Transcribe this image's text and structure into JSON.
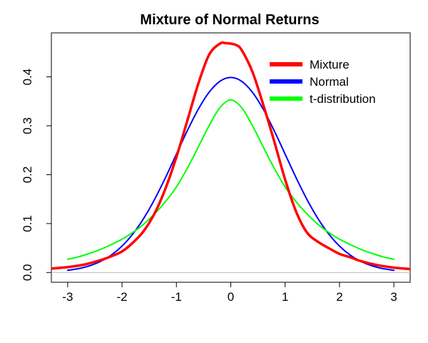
{
  "chart_data": {
    "type": "line",
    "title": "Mixture of Normal Returns",
    "xlabel": "",
    "ylabel": "",
    "xlim": [
      -3.3,
      3.3
    ],
    "ylim": [
      -0.02,
      0.49
    ],
    "xticks": [
      -3,
      -2,
      -1,
      0,
      1,
      2,
      3
    ],
    "yticks": [
      0.0,
      0.1,
      0.2,
      0.3,
      0.4
    ],
    "xtick_labels": [
      "-3",
      "-2",
      "-1",
      "0",
      "1",
      "2",
      "3"
    ],
    "ytick_labels": [
      "0.0",
      "0.1",
      "0.2",
      "0.3",
      "0.4"
    ],
    "grid": false,
    "baseline": 0,
    "legend": {
      "position": "top-right"
    },
    "series": [
      {
        "name": "Mixture",
        "color": "#ff0000",
        "x": [
          -3.3,
          -3.0,
          -2.7,
          -2.4,
          -2.2,
          -2.0,
          -1.8,
          -1.6,
          -1.4,
          -1.2,
          -1.0,
          -0.8,
          -0.6,
          -0.4,
          -0.2,
          -0.1,
          0.0,
          0.1,
          0.2,
          0.4,
          0.6,
          0.8,
          1.0,
          1.2,
          1.4,
          1.6,
          1.8,
          2.0,
          2.2,
          2.4,
          2.7,
          3.0,
          3.3
        ],
        "y": [
          0.008,
          0.011,
          0.016,
          0.025,
          0.033,
          0.043,
          0.061,
          0.085,
          0.121,
          0.172,
          0.236,
          0.31,
          0.385,
          0.445,
          0.468,
          0.469,
          0.468,
          0.465,
          0.455,
          0.41,
          0.342,
          0.268,
          0.19,
          0.125,
          0.082,
          0.063,
          0.05,
          0.038,
          0.031,
          0.023,
          0.015,
          0.01,
          0.007
        ]
      },
      {
        "name": "Normal",
        "color": "#0000ff",
        "x": [
          -3.0,
          -2.8,
          -2.6,
          -2.4,
          -2.2,
          -2.0,
          -1.8,
          -1.6,
          -1.4,
          -1.2,
          -1.0,
          -0.8,
          -0.6,
          -0.4,
          -0.2,
          0.0,
          0.2,
          0.4,
          0.6,
          0.8,
          1.0,
          1.2,
          1.4,
          1.6,
          1.8,
          2.0,
          2.2,
          2.4,
          2.6,
          2.8,
          3.0
        ],
        "y": [
          0.0044,
          0.0079,
          0.0136,
          0.0224,
          0.0355,
          0.054,
          0.079,
          0.1109,
          0.1497,
          0.1942,
          0.242,
          0.2897,
          0.3332,
          0.3683,
          0.391,
          0.3989,
          0.391,
          0.3683,
          0.3332,
          0.2897,
          0.242,
          0.1942,
          0.1497,
          0.1109,
          0.079,
          0.054,
          0.0355,
          0.0224,
          0.0136,
          0.0079,
          0.0044
        ]
      },
      {
        "name": "t-distribution",
        "color": "#00ff00",
        "x": [
          -3.0,
          -2.8,
          -2.6,
          -2.4,
          -2.2,
          -2.0,
          -1.8,
          -1.6,
          -1.4,
          -1.2,
          -1.0,
          -0.8,
          -0.6,
          -0.4,
          -0.2,
          0.0,
          0.2,
          0.4,
          0.6,
          0.8,
          1.0,
          1.2,
          1.4,
          1.6,
          1.8,
          2.0,
          2.2,
          2.4,
          2.6,
          2.8,
          3.0
        ],
        "y": [
          0.027,
          0.032,
          0.039,
          0.047,
          0.057,
          0.068,
          0.082,
          0.099,
          0.12,
          0.145,
          0.175,
          0.213,
          0.256,
          0.3,
          0.337,
          0.353,
          0.337,
          0.3,
          0.256,
          0.213,
          0.175,
          0.145,
          0.12,
          0.099,
          0.082,
          0.068,
          0.057,
          0.047,
          0.039,
          0.032,
          0.027
        ]
      }
    ]
  }
}
